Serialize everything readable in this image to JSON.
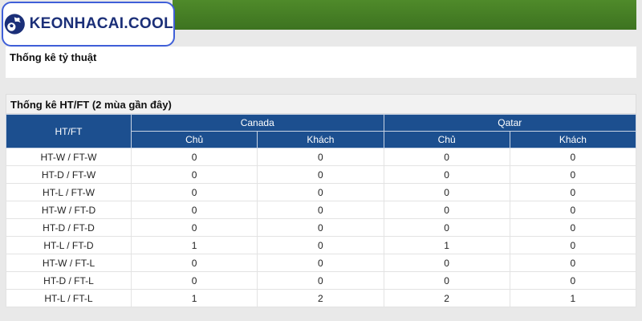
{
  "logo": {
    "text": "KEONHACAI.COOL"
  },
  "sections": [
    {
      "title": "Thống kê tỷ thuật"
    },
    {
      "title": "Thống kê HT/FT (2 mùa gần đây)"
    }
  ],
  "table": {
    "corner": "HT/FT",
    "teams": [
      "Canada",
      "Qatar"
    ],
    "subheaders": [
      "Chủ",
      "Khách",
      "Chủ",
      "Khách"
    ],
    "rows": [
      [
        "HT-W / FT-W",
        0,
        0,
        0,
        0
      ],
      [
        "HT-D / FT-W",
        0,
        0,
        0,
        0
      ],
      [
        "HT-L / FT-W",
        0,
        0,
        0,
        0
      ],
      [
        "HT-W / FT-D",
        0,
        0,
        0,
        0
      ],
      [
        "HT-D / FT-D",
        0,
        0,
        0,
        0
      ],
      [
        "HT-L / FT-D",
        1,
        0,
        1,
        0
      ],
      [
        "HT-W / FT-L",
        0,
        0,
        0,
        0
      ],
      [
        "HT-D / FT-L",
        0,
        0,
        0,
        0
      ],
      [
        "HT-L / FT-L",
        1,
        2,
        2,
        1
      ]
    ]
  }
}
